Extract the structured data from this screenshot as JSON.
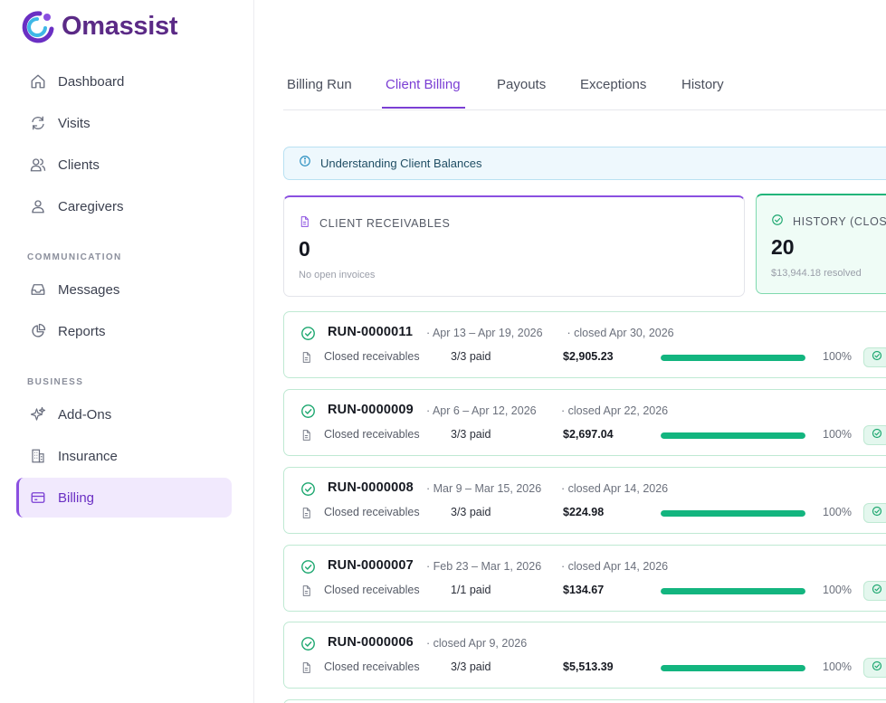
{
  "app": {
    "name": "Omassist"
  },
  "sidebar": {
    "main_items": [
      {
        "label": "Dashboard",
        "icon": "home-icon"
      },
      {
        "label": "Visits",
        "icon": "refresh-icon"
      },
      {
        "label": "Clients",
        "icon": "users-icon"
      },
      {
        "label": "Caregivers",
        "icon": "user-icon"
      }
    ],
    "communication_label": "COMMUNICATION",
    "communication_items": [
      {
        "label": "Messages",
        "icon": "inbox-icon"
      },
      {
        "label": "Reports",
        "icon": "pie-chart-icon"
      }
    ],
    "business_label": "BUSINESS",
    "business_items": [
      {
        "label": "Add-Ons",
        "icon": "sparkles-icon"
      },
      {
        "label": "Insurance",
        "icon": "building-icon"
      },
      {
        "label": "Billing",
        "icon": "credit-card-icon",
        "active": true
      }
    ]
  },
  "tabs": [
    {
      "label": "Billing Run"
    },
    {
      "label": "Client Billing",
      "active": true
    },
    {
      "label": "Payouts"
    },
    {
      "label": "Exceptions"
    },
    {
      "label": "History"
    }
  ],
  "banner": {
    "text": "Understanding Client Balances",
    "icon": "info-icon"
  },
  "cards": {
    "receivables": {
      "title": "CLIENT RECEIVABLES",
      "value": "0",
      "subtitle": "No open invoices",
      "accent": "#8a4fe0"
    },
    "history": {
      "title": "HISTORY (CLOSE",
      "value": "20",
      "subtitle": "$13,944.18 resolved",
      "accent": "#22b57a"
    }
  },
  "runs": [
    {
      "id": "RUN-0000011",
      "range": "· Apr 13 – Apr 19, 2026",
      "closed": "· closed Apr 30, 2026",
      "label": "Closed receivables",
      "paid": "3/3 paid",
      "amount": "$2,905.23",
      "progress": 100,
      "pct": "100%"
    },
    {
      "id": "RUN-0000009",
      "range": "· Apr 6 – Apr 12, 2026",
      "closed": "· closed Apr 22, 2026",
      "label": "Closed receivables",
      "paid": "3/3 paid",
      "amount": "$2,697.04",
      "progress": 100,
      "pct": "100%"
    },
    {
      "id": "RUN-0000008",
      "range": "· Mar 9 – Mar 15, 2026",
      "closed": "· closed Apr 14, 2026",
      "label": "Closed receivables",
      "paid": "3/3 paid",
      "amount": "$224.98",
      "progress": 100,
      "pct": "100%"
    },
    {
      "id": "RUN-0000007",
      "range": "· Feb 23 – Mar 1, 2026",
      "closed": "· closed Apr 14, 2026",
      "label": "Closed receivables",
      "paid": "1/1 paid",
      "amount": "$134.67",
      "progress": 100,
      "pct": "100%"
    },
    {
      "id": "RUN-0000006",
      "range": "",
      "closed": "· closed Apr 9, 2026",
      "label": "Closed receivables",
      "paid": "3/3 paid",
      "amount": "$5,513.39",
      "progress": 100,
      "pct": "100%"
    }
  ],
  "colors": {
    "brand": "#5b2a86",
    "accent": "#7b3fd4",
    "success": "#13b57f"
  }
}
